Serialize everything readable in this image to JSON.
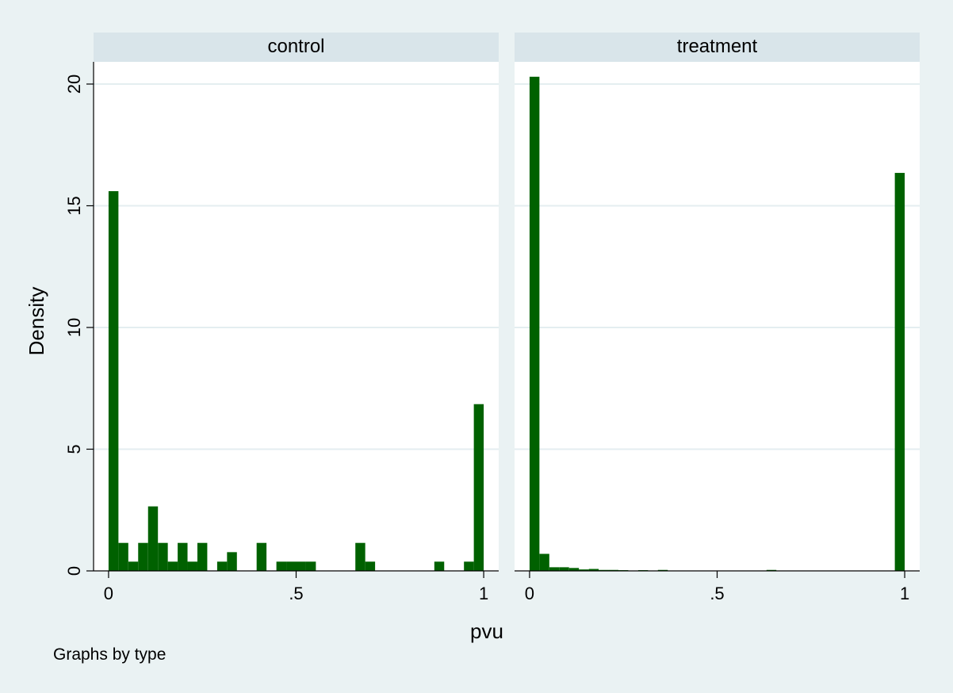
{
  "chart_data": {
    "type": "bar",
    "ylabel": "Density",
    "xlabel": "pvu",
    "note": "Graphs by type",
    "ylim": [
      0,
      21
    ],
    "xlim": [
      -0.04,
      1.04
    ],
    "yticks": [
      0,
      5,
      10,
      15,
      20
    ],
    "xticks": [
      0,
      0.5,
      1
    ],
    "xtick_labels": [
      "0",
      ".5",
      "1"
    ],
    "bar_color": "#006100",
    "bin_width": 0.0263,
    "panels": [
      {
        "title": "control",
        "bins": [
          {
            "x": 0.0,
            "y": 15.6
          },
          {
            "x": 0.0263,
            "y": 1.15
          },
          {
            "x": 0.0526,
            "y": 0.38
          },
          {
            "x": 0.0789,
            "y": 1.15
          },
          {
            "x": 0.1053,
            "y": 2.65
          },
          {
            "x": 0.1316,
            "y": 1.15
          },
          {
            "x": 0.1579,
            "y": 0.38
          },
          {
            "x": 0.1842,
            "y": 1.15
          },
          {
            "x": 0.2105,
            "y": 0.38
          },
          {
            "x": 0.2368,
            "y": 1.15
          },
          {
            "x": 0.2895,
            "y": 0.38
          },
          {
            "x": 0.3158,
            "y": 0.77
          },
          {
            "x": 0.3947,
            "y": 1.15
          },
          {
            "x": 0.4474,
            "y": 0.38
          },
          {
            "x": 0.4737,
            "y": 0.38
          },
          {
            "x": 0.5,
            "y": 0.38
          },
          {
            "x": 0.5263,
            "y": 0.38
          },
          {
            "x": 0.6579,
            "y": 1.15
          },
          {
            "x": 0.6842,
            "y": 0.38
          },
          {
            "x": 0.8684,
            "y": 0.38
          },
          {
            "x": 0.9474,
            "y": 0.38
          },
          {
            "x": 0.9737,
            "y": 6.85
          }
        ]
      },
      {
        "title": "treatment",
        "bins": [
          {
            "x": 0.0,
            "y": 20.3
          },
          {
            "x": 0.0263,
            "y": 0.7
          },
          {
            "x": 0.0526,
            "y": 0.15
          },
          {
            "x": 0.0789,
            "y": 0.15
          },
          {
            "x": 0.1053,
            "y": 0.12
          },
          {
            "x": 0.1316,
            "y": 0.06
          },
          {
            "x": 0.1579,
            "y": 0.08
          },
          {
            "x": 0.1842,
            "y": 0.04
          },
          {
            "x": 0.2105,
            "y": 0.04
          },
          {
            "x": 0.2368,
            "y": 0.03
          },
          {
            "x": 0.2895,
            "y": 0.03
          },
          {
            "x": 0.3421,
            "y": 0.04
          },
          {
            "x": 0.6316,
            "y": 0.04
          },
          {
            "x": 0.9737,
            "y": 16.35
          }
        ]
      }
    ]
  }
}
